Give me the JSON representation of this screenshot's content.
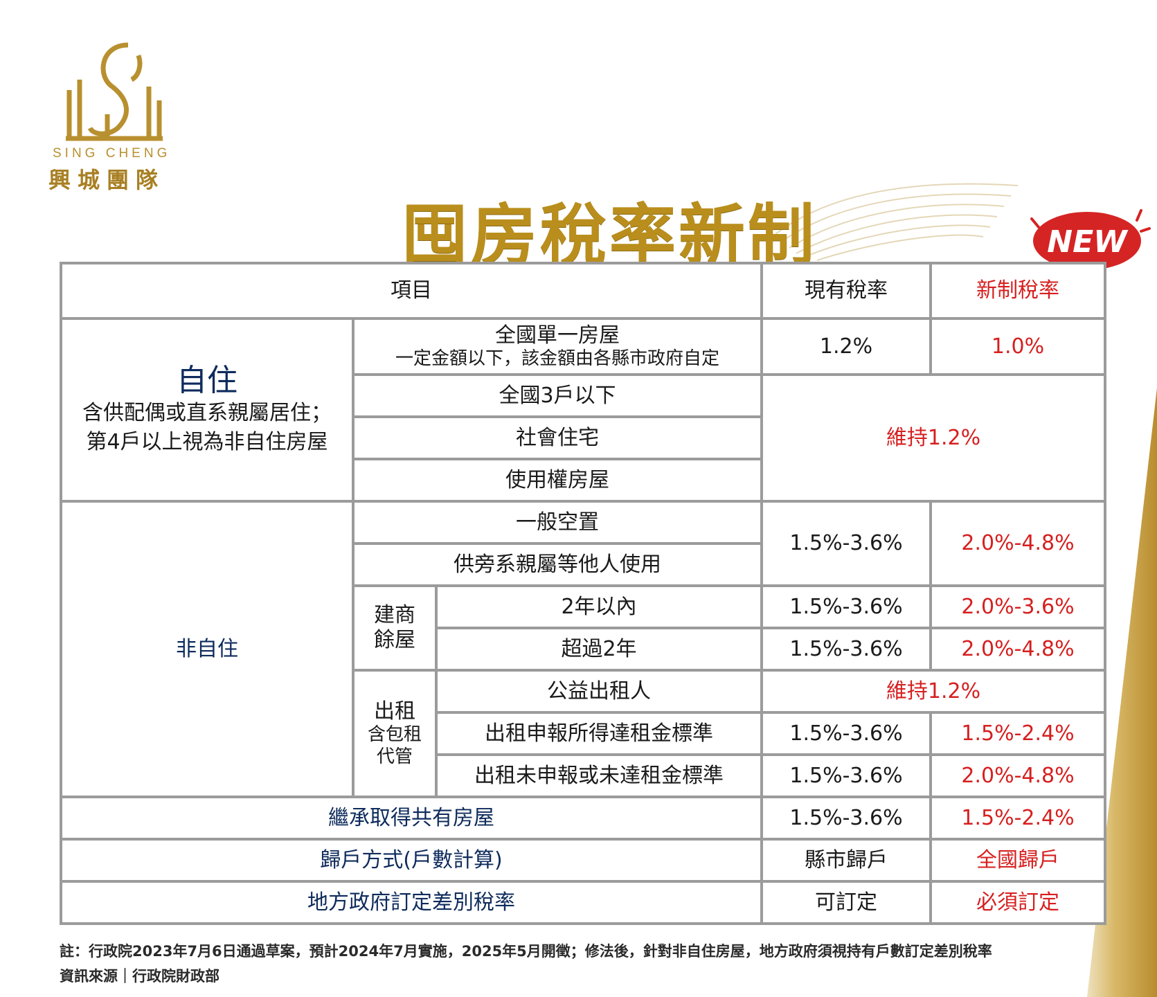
{
  "brand": {
    "name_en": "SING CHENG",
    "name_zh": "興城團隊"
  },
  "title": "囤房稅率新制",
  "badge": "NEW",
  "header": {
    "item": "項目",
    "current": "現有稅率",
    "new": "新制稅率"
  },
  "self_use": {
    "label": "自住",
    "desc_line1": "含供配偶或直系親屬居住；",
    "desc_line2": "第4戶以上視為非自住房屋",
    "single_line1": "全國單一房屋",
    "single_line2": "一定金額以下，該金額由各縣市政府自定",
    "single_current": "1.2%",
    "single_new": "1.0%",
    "rows": [
      "全國3戶以下",
      "社會住宅",
      "使用權房屋"
    ],
    "keep": "維持1.2%"
  },
  "non_self": {
    "label": "非自住",
    "vacant": "一般空置",
    "relatives": "供旁系親屬等他人使用",
    "group_current": "1.5%-3.6%",
    "group_new": "2.0%-4.8%",
    "builder": {
      "label_line1": "建商",
      "label_line2": "餘屋",
      "within2": "2年以內",
      "within2_current": "1.5%-3.6%",
      "within2_new": "2.0%-3.6%",
      "over2": "超過2年",
      "over2_current": "1.5%-3.6%",
      "over2_new": "2.0%-4.8%"
    },
    "rental": {
      "label_line1": "出租",
      "label_line2": "含包租",
      "label_line3": "代管",
      "public": "公益出租人",
      "public_rate": "維持1.2%",
      "reported": "出租申報所得達租金標準",
      "reported_current": "1.5%-3.6%",
      "reported_new": "1.5%-2.4%",
      "unreported": "出租未申報或未達租金標準",
      "unreported_current": "1.5%-3.6%",
      "unreported_new": "2.0%-4.8%"
    }
  },
  "inherit": {
    "label": "繼承取得共有房屋",
    "current": "1.5%-3.6%",
    "new": "1.5%-2.4%"
  },
  "household": {
    "label": "歸戶方式(戶數計算)",
    "current": "縣市歸戶",
    "new": "全國歸戶"
  },
  "differential": {
    "label": "地方政府訂定差別稅率",
    "current": "可訂定",
    "new": "必須訂定"
  },
  "footnote": "註：行政院2023年7月6日通過草案，預計2024年7月實施，2025年5月開徵；修法後，針對非自住房屋，地方政府須視持有戶數訂定差別稅率",
  "source": "資訊來源｜行政院財政部",
  "colors": {
    "gold": "#b98e1c",
    "red": "#d61f1f",
    "navy": "#0e2b5c",
    "pink": "#fbe0d6"
  }
}
